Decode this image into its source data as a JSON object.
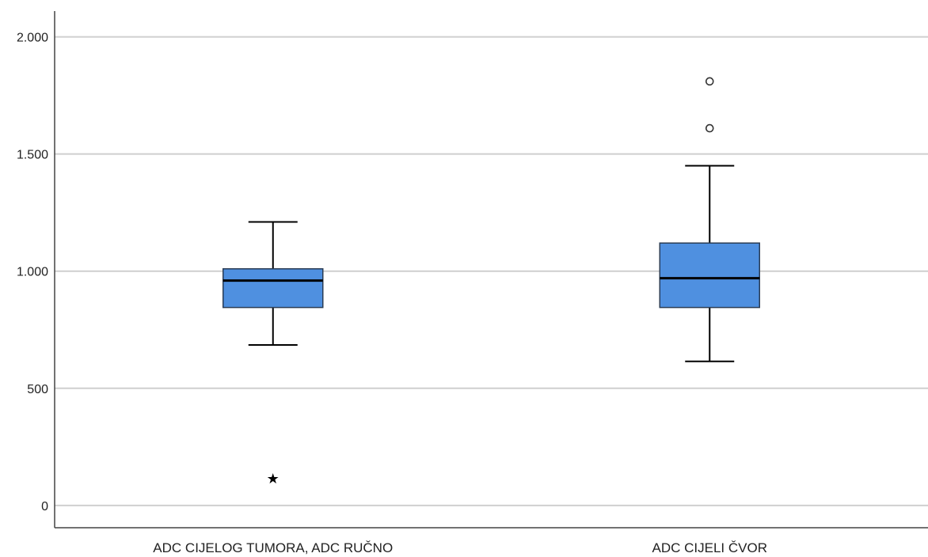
{
  "chart_data": {
    "type": "boxplot",
    "title": "",
    "xlabel": "",
    "ylabel": "",
    "ylim": [
      -95,
      2110
    ],
    "y_ticks": [
      0,
      500,
      1000,
      1500,
      2000
    ],
    "y_tick_labels": [
      "0",
      "500",
      "1.000",
      "1.500",
      "2.000"
    ],
    "grid": true,
    "legend": "none",
    "colors": {
      "box_fill": "#4f90e0",
      "box_stroke": "#2a3c55",
      "median": "#000000",
      "whisker": "#000000",
      "grid": "#cfcfcf",
      "axis": "#444444"
    },
    "categories": [
      "ADC CIJELOG TUMORA, ADC RUČNO",
      "ADC CIJELI ČVOR"
    ],
    "boxes": [
      {
        "category": "ADC CIJELOG TUMORA, ADC RUČNO",
        "whisker_low": 685,
        "q1": 845,
        "median": 960,
        "q3": 1010,
        "whisker_high": 1210,
        "outliers": [],
        "extremes": [
          115
        ]
      },
      {
        "category": "ADC CIJELI ČVOR",
        "whisker_low": 615,
        "q1": 845,
        "median": 970,
        "q3": 1120,
        "whisker_high": 1450,
        "outliers": [
          1610,
          1810
        ],
        "extremes": []
      }
    ]
  }
}
